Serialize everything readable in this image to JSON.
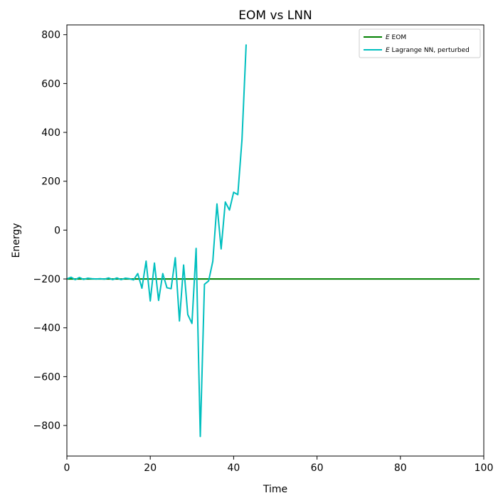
{
  "chart_data": {
    "type": "line",
    "title": "EOM vs LNN",
    "xlabel": "Time",
    "ylabel": "Energy",
    "xlim": [
      0,
      100
    ],
    "ylim": [
      -925,
      840
    ],
    "xticks": [
      0,
      20,
      40,
      60,
      80,
      100
    ],
    "yticks": [
      -800,
      -600,
      -400,
      -200,
      0,
      200,
      400,
      600,
      800
    ],
    "xtick_labels": [
      "0",
      "20",
      "40",
      "60",
      "80",
      "100"
    ],
    "ytick_labels": [
      "−800",
      "−600",
      "−400",
      "−200",
      "0",
      "200",
      "400",
      "600",
      "800"
    ],
    "grid": false,
    "legend_position": "top-right",
    "series": [
      {
        "name": "E EOM",
        "legend_symbol": "E",
        "legend_text": "EOM",
        "color": "#008000",
        "x": [
          0,
          99
        ],
        "y": [
          -200,
          -200
        ]
      },
      {
        "name": "E Lagrange NN, perturbed",
        "legend_symbol": "E",
        "legend_text": "Lagrange NN, perturbed",
        "color": "#00bfbf",
        "x": [
          0,
          1,
          2,
          3,
          4,
          5,
          6,
          7,
          8,
          9,
          10,
          11,
          12,
          13,
          14,
          15,
          16,
          17,
          18,
          19,
          20,
          21,
          22,
          23,
          24,
          25,
          26,
          27,
          28,
          29,
          30,
          31,
          32,
          33,
          34,
          35,
          36,
          37,
          38,
          39,
          40,
          41,
          42,
          43
        ],
        "y": [
          -200,
          -193,
          -203,
          -194,
          -202,
          -197,
          -199,
          -200,
          -199,
          -201,
          -196,
          -203,
          -196,
          -203,
          -197,
          -199,
          -204,
          -178,
          -238,
          -127,
          -290,
          -135,
          -288,
          -178,
          -236,
          -240,
          -113,
          -372,
          -143,
          -346,
          -382,
          -75,
          -845,
          -222,
          -208,
          -128,
          107,
          -77,
          115,
          82,
          155,
          145,
          370,
          760
        ]
      }
    ]
  }
}
